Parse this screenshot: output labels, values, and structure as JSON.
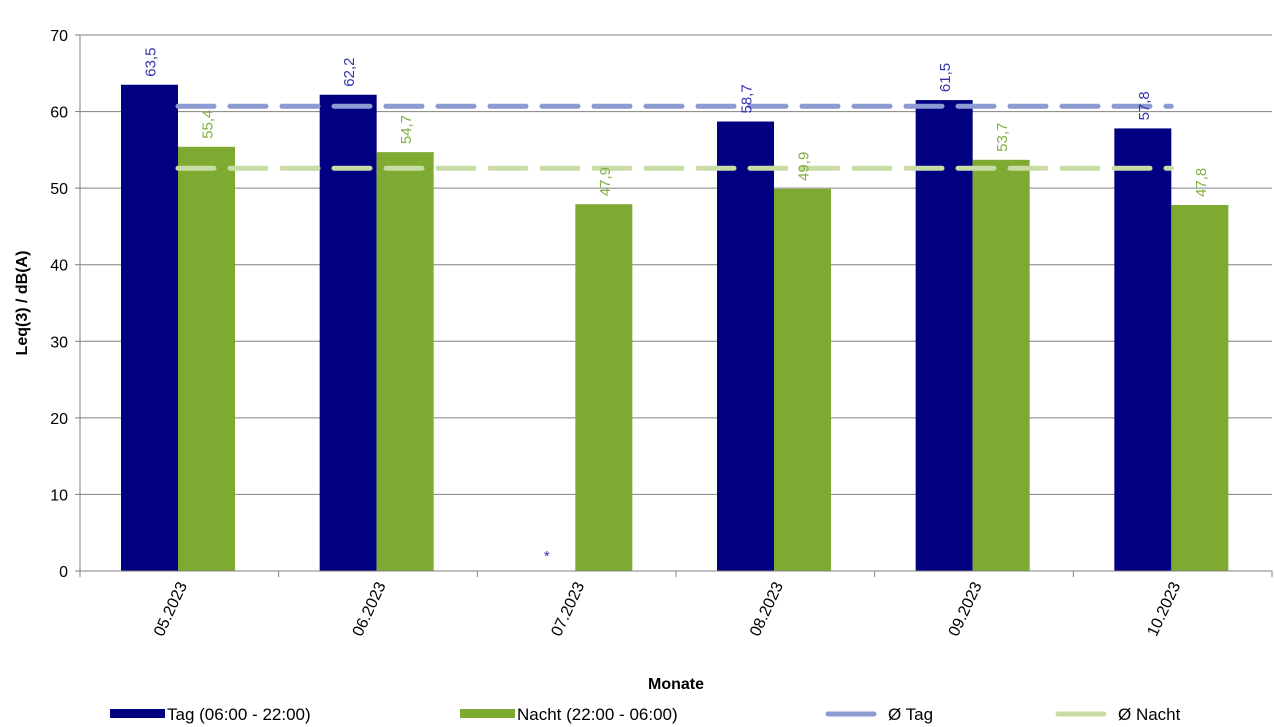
{
  "chart_data": {
    "type": "bar",
    "categories": [
      "05.2023",
      "06.2023",
      "07.2023",
      "08.2023",
      "09.2023",
      "10.2023"
    ],
    "series": [
      {
        "name": "Tag (06:00 - 22:00)",
        "color": "#000080",
        "values": [
          63.5,
          62.2,
          null,
          58.7,
          61.5,
          57.8
        ],
        "labels": [
          "63,5",
          "62,2",
          "*",
          "58,7",
          "61,5",
          "57,8"
        ]
      },
      {
        "name": "Nacht (22:00 - 06:00)",
        "color": "#7FAA32",
        "values": [
          55.4,
          54.7,
          47.9,
          49.9,
          53.7,
          47.8
        ],
        "labels": [
          "55,4",
          "54,7",
          "47,9",
          "49,9",
          "53,7",
          "47,8"
        ]
      }
    ],
    "reference_lines": [
      {
        "name": "Ø Tag",
        "value": 60.7,
        "color": "#8C9BD2",
        "style": "dashed"
      },
      {
        "name": "Ø Nacht",
        "value": 52.6,
        "color": "#C8DCA5",
        "style": "dashed"
      }
    ],
    "xlabel": "Monate",
    "ylabel": "Leq(3) / dB(A)",
    "ylim": [
      0,
      70
    ],
    "yticks": [
      0,
      10,
      20,
      30,
      40,
      50,
      60,
      70
    ],
    "grid": true,
    "legend_position": "bottom",
    "label_colors": {
      "Tag (06:00 - 22:00)": "#3333AA",
      "Nacht (22:00 - 06:00)": "#80B040"
    },
    "gridline_color": "#808080"
  }
}
